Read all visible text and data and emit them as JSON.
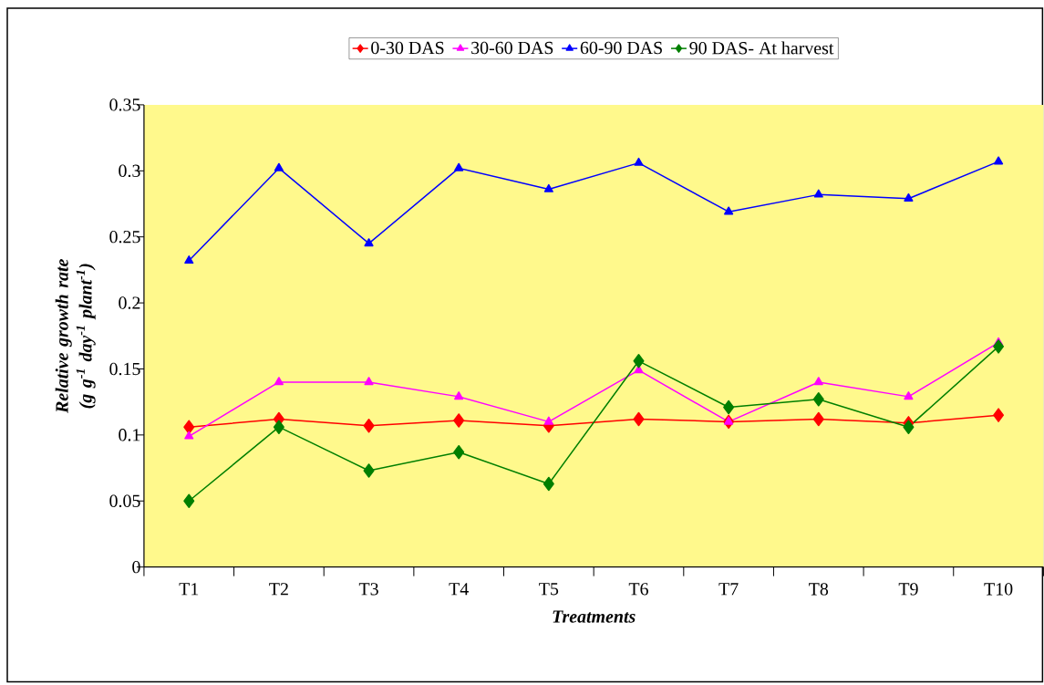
{
  "chart_data": {
    "type": "line",
    "xlabel": "Treatments",
    "ylabel": "Relative growth rate (g g$^{-1}$ day$^{-1}$ plant$^{-1}$)",
    "categories": [
      "T1",
      "T2",
      "T3",
      "T4",
      "T5",
      "T6",
      "T7",
      "T8",
      "T9",
      "T10"
    ],
    "series": [
      {
        "name": "0-30 DAS",
        "color": "#ff0000",
        "marker": "diamond",
        "values": [
          0.106,
          0.112,
          0.107,
          0.111,
          0.107,
          0.112,
          0.11,
          0.112,
          0.109,
          0.115
        ]
      },
      {
        "name": "30-60 DAS",
        "color": "#ff00ff",
        "marker": "triangle",
        "values": [
          0.099,
          0.14,
          0.14,
          0.129,
          0.11,
          0.149,
          0.11,
          0.14,
          0.129,
          0.17
        ]
      },
      {
        "name": "60-90 DAS",
        "color": "#0000ff",
        "marker": "triangle",
        "values": [
          0.232,
          0.302,
          0.245,
          0.302,
          0.286,
          0.306,
          0.269,
          0.282,
          0.279,
          0.307
        ]
      },
      {
        "name": "90 DAS- At harvest",
        "color": "#007f00",
        "marker": "diamond",
        "values": [
          0.05,
          0.106,
          0.073,
          0.087,
          0.063,
          0.156,
          0.121,
          0.127,
          0.106,
          0.167
        ]
      }
    ],
    "ylim": [
      0,
      0.35
    ],
    "yticks": [
      0,
      0.05,
      0.1,
      0.15,
      0.2,
      0.25,
      0.3,
      0.35
    ],
    "grid": false,
    "legend": "top"
  }
}
